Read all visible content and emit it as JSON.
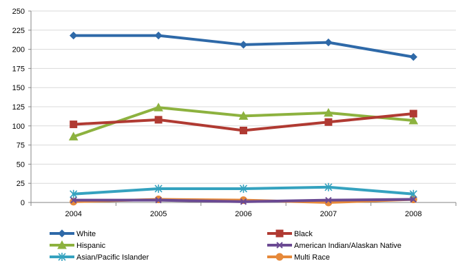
{
  "chart_data": {
    "type": "line",
    "title": "",
    "xlabel": "",
    "ylabel": "",
    "x": [
      "2004",
      "2005",
      "2006",
      "2007",
      "2008"
    ],
    "ylim": [
      0,
      250
    ],
    "yticks": [
      "0",
      "25",
      "50",
      "75",
      "100",
      "125",
      "150",
      "175",
      "200",
      "225",
      "250"
    ],
    "grid": true,
    "legend_position": "bottom",
    "series": [
      {
        "name": "White",
        "values": [
          218,
          218,
          206,
          209,
          190
        ],
        "color": "#2E69A8",
        "marker": "diamond"
      },
      {
        "name": "Black",
        "values": [
          102,
          108,
          94,
          105,
          116
        ],
        "color": "#B03A32",
        "marker": "square"
      },
      {
        "name": "Hispanic",
        "values": [
          86,
          124,
          113,
          117,
          107
        ],
        "color": "#8DB23F",
        "marker": "triangle"
      },
      {
        "name": "American Indian/Alaskan  Native",
        "values": [
          3,
          3,
          1,
          3,
          4
        ],
        "color": "#6B4A93",
        "marker": "x"
      },
      {
        "name": "Asian/Pacific Islander",
        "values": [
          11,
          18,
          18,
          20,
          11
        ],
        "color": "#35A2BF",
        "marker": "asterisk"
      },
      {
        "name": "Multi Race",
        "values": [
          1,
          4,
          3,
          0,
          4
        ],
        "color": "#E6893A",
        "marker": "circle"
      }
    ]
  }
}
